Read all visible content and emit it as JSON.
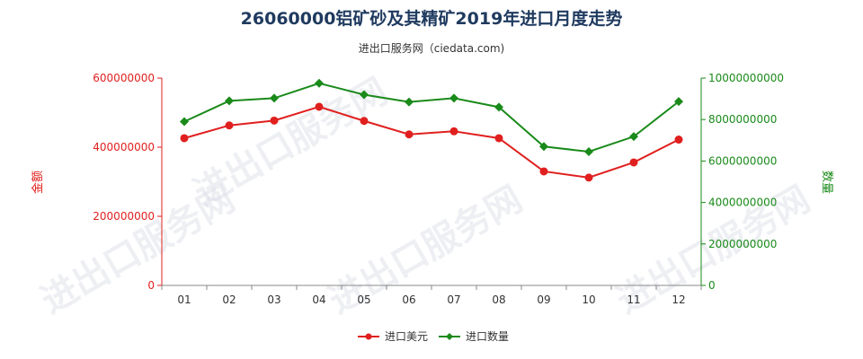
{
  "header": {
    "title": "26060000铝矿砂及其精矿2019年进口月度走势",
    "subtitle": "进出口服务网（ciedata.com)"
  },
  "watermark_text": "进出口服务网",
  "chart_data": {
    "type": "line",
    "categories": [
      "01",
      "02",
      "03",
      "04",
      "05",
      "06",
      "07",
      "08",
      "09",
      "10",
      "11",
      "12"
    ],
    "y_left": {
      "label": "金额",
      "range": [
        0,
        600000000
      ],
      "ticks": [
        "0",
        "200000000",
        "400000000",
        "600000000"
      ],
      "color": "#e0201f"
    },
    "y_right": {
      "label": "数量",
      "range": [
        0,
        10000000000
      ],
      "ticks": [
        "0",
        "2000000000",
        "4000000000",
        "6000000000",
        "8000000000",
        "10000000000"
      ],
      "color": "#1a8a1a"
    },
    "series": [
      {
        "name": "进口美元",
        "axis": "left",
        "color": "#e0201f",
        "marker": "circle",
        "values": [
          426000000,
          463000000,
          477000000,
          517000000,
          476000000,
          437000000,
          446000000,
          426000000,
          330000000,
          312000000,
          356000000,
          422000000
        ]
      },
      {
        "name": "进口数量",
        "axis": "right",
        "color": "#1a8a1a",
        "marker": "diamond",
        "values": [
          7900000000,
          8900000000,
          9030000000,
          9750000000,
          9200000000,
          8850000000,
          9030000000,
          8600000000,
          6700000000,
          6450000000,
          7180000000,
          8870000000
        ]
      }
    ],
    "grid": false,
    "legend_position": "bottom-center"
  }
}
